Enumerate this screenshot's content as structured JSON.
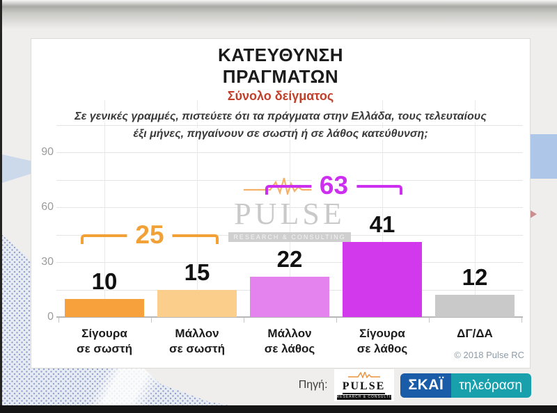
{
  "header": {
    "title_line1": "ΚΑΤΕΥΘΥΝΣΗ",
    "title_line2": "ΠΡΑΓΜΑΤΩΝ",
    "subtitle": "Σύνολο δείγματος",
    "subtitle_color": "#c2402a"
  },
  "question": {
    "line1": "Σε γενικές γραμμές, πιστεύετε ότι τα πράγματα στην Ελλάδα, τους τελευταίους",
    "line2": "έξι μήνες, πηγαίνουν σε σωστή ή σε λάθος κατεύθυνση;"
  },
  "chart_data": {
    "type": "bar",
    "title": "ΚΑΤΕΥΘΥΝΣΗ ΠΡΑΓΜΑΤΩΝ",
    "subtitle": "Σύνολο δείγματος",
    "categories": [
      "Σίγουρα\nσε σωστή",
      "Μάλλον\nσε σωστή",
      "Μάλλον\nσε λάθος",
      "Σίγουρα\nσε λάθος",
      "ΔΓ/ΔΑ"
    ],
    "values": [
      10,
      15,
      22,
      41,
      12
    ],
    "bar_colors": [
      "#f6a13c",
      "#fbcf8b",
      "#e583ee",
      "#d238ec",
      "#c9c9c9"
    ],
    "ylim": [
      0,
      105
    ],
    "yticks": [
      0,
      30,
      60,
      90
    ],
    "grid_step": 15,
    "grid": "on",
    "legend": "none",
    "xlabel": "",
    "ylabel": "",
    "annotations": [
      {
        "label": "25",
        "value": 25,
        "sum_of_bars": [
          1,
          2
        ],
        "color": "#f2a137"
      },
      {
        "label": "63",
        "value": 63,
        "sum_of_bars": [
          3,
          4
        ],
        "color": "#cd2ff0"
      }
    ]
  },
  "watermark": {
    "name": "PULSE",
    "tagline": "RESEARCH & CONSULTING"
  },
  "copyright": "© 2018 Pulse RC",
  "footer": {
    "source_label": "Πηγή:",
    "pulse_logo": {
      "name": "PULSE",
      "tagline": "RESEARCH & CONSULTING"
    },
    "skai_logo": {
      "name": "ΣΚΑΪ",
      "suffix": "τηλεόραση",
      "name_bg": "#1b5ca8",
      "suffix_bg": "#18a0ac"
    }
  }
}
